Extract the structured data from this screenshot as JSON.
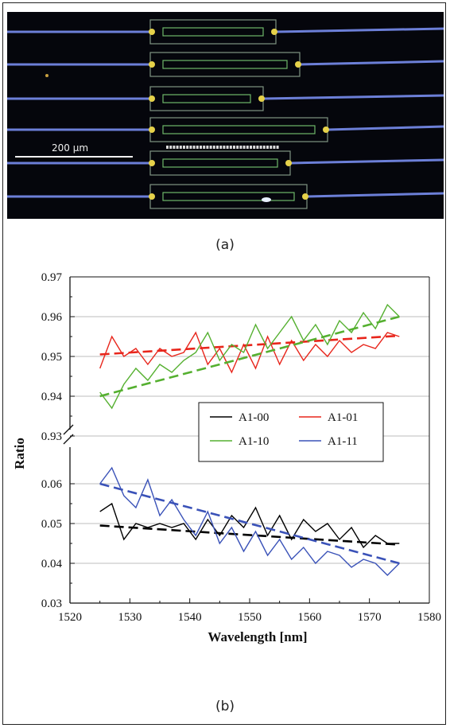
{
  "figure": {
    "caption_a": "(a)",
    "caption_b": "(b)"
  },
  "micrograph": {
    "scale_label": "200 μm",
    "colors": {
      "background": "#05060c",
      "waveguide": "#6c7fd8",
      "device_outline": "#9fb8a0",
      "junction": "#e6d24a"
    },
    "device_count": 6
  },
  "chart_data": {
    "type": "line",
    "xlabel": "Wavelength [nm]",
    "ylabel": "Ratio",
    "xlim": [
      1520,
      1580
    ],
    "x_ticks": [
      1520,
      1530,
      1540,
      1550,
      1560,
      1570,
      1580
    ],
    "broken_axis": true,
    "upper_panel": {
      "ylim": [
        0.93,
        0.97
      ],
      "y_ticks": [
        "0.93",
        "0.94",
        "0.95",
        "0.96",
        "0.97"
      ]
    },
    "lower_panel": {
      "ylim": [
        0.03,
        0.07
      ],
      "y_ticks": [
        "0.03",
        "0.04",
        "0.05",
        "0.06"
      ]
    },
    "grid": true,
    "legend": {
      "placement": "right",
      "entries": [
        "A1-00",
        "A1-01",
        "A1-10",
        "A1-11"
      ]
    },
    "series": [
      {
        "name": "A1-00",
        "color": "#000000",
        "panel": "lower",
        "x": [
          1525,
          1527,
          1529,
          1531,
          1533,
          1535,
          1537,
          1539,
          1541,
          1543,
          1545,
          1547,
          1549,
          1551,
          1553,
          1555,
          1557,
          1559,
          1561,
          1563,
          1565,
          1567,
          1569,
          1571,
          1573,
          1575
        ],
        "y": [
          0.053,
          0.055,
          0.046,
          0.05,
          0.049,
          0.05,
          0.049,
          0.05,
          0.046,
          0.051,
          0.047,
          0.052,
          0.049,
          0.054,
          0.047,
          0.052,
          0.046,
          0.051,
          0.048,
          0.05,
          0.046,
          0.049,
          0.044,
          0.047,
          0.045,
          0.045
        ],
        "fit": {
          "x": [
            1525,
            1575
          ],
          "y": [
            0.0495,
            0.0447
          ]
        }
      },
      {
        "name": "A1-01",
        "color": "#e8261c",
        "panel": "upper",
        "x": [
          1525,
          1527,
          1529,
          1531,
          1533,
          1535,
          1537,
          1539,
          1541,
          1543,
          1545,
          1547,
          1549,
          1551,
          1553,
          1555,
          1557,
          1559,
          1561,
          1563,
          1565,
          1567,
          1569,
          1571,
          1573,
          1575
        ],
        "y": [
          0.947,
          0.955,
          0.95,
          0.952,
          0.948,
          0.952,
          0.95,
          0.951,
          0.956,
          0.948,
          0.952,
          0.946,
          0.953,
          0.947,
          0.955,
          0.948,
          0.954,
          0.949,
          0.953,
          0.95,
          0.954,
          0.951,
          0.953,
          0.952,
          0.956,
          0.955
        ],
        "fit": {
          "x": [
            1525,
            1575
          ],
          "y": [
            0.9505,
            0.9552
          ]
        }
      },
      {
        "name": "A1-10",
        "color": "#55b030",
        "panel": "upper",
        "x": [
          1525,
          1527,
          1529,
          1531,
          1533,
          1535,
          1537,
          1539,
          1541,
          1543,
          1545,
          1547,
          1549,
          1551,
          1553,
          1555,
          1557,
          1559,
          1561,
          1563,
          1565,
          1567,
          1569,
          1571,
          1573,
          1575
        ],
        "y": [
          0.941,
          0.937,
          0.943,
          0.947,
          0.944,
          0.948,
          0.946,
          0.949,
          0.951,
          0.956,
          0.949,
          0.953,
          0.951,
          0.958,
          0.952,
          0.956,
          0.96,
          0.954,
          0.958,
          0.953,
          0.959,
          0.956,
          0.961,
          0.957,
          0.963,
          0.96
        ],
        "fit": {
          "x": [
            1525,
            1575
          ],
          "y": [
            0.94,
            0.96
          ]
        }
      },
      {
        "name": "A1-11",
        "color": "#3a52b8",
        "panel": "lower",
        "x": [
          1525,
          1527,
          1529,
          1531,
          1533,
          1535,
          1537,
          1539,
          1541,
          1543,
          1545,
          1547,
          1549,
          1551,
          1553,
          1555,
          1557,
          1559,
          1561,
          1563,
          1565,
          1567,
          1569,
          1571,
          1573,
          1575
        ],
        "y": [
          0.06,
          0.064,
          0.057,
          0.054,
          0.061,
          0.052,
          0.056,
          0.051,
          0.047,
          0.053,
          0.045,
          0.049,
          0.043,
          0.048,
          0.042,
          0.046,
          0.041,
          0.044,
          0.04,
          0.043,
          0.042,
          0.039,
          0.041,
          0.04,
          0.037,
          0.04
        ],
        "fit": {
          "x": [
            1525,
            1575
          ],
          "y": [
            0.06,
            0.04
          ]
        }
      }
    ]
  }
}
